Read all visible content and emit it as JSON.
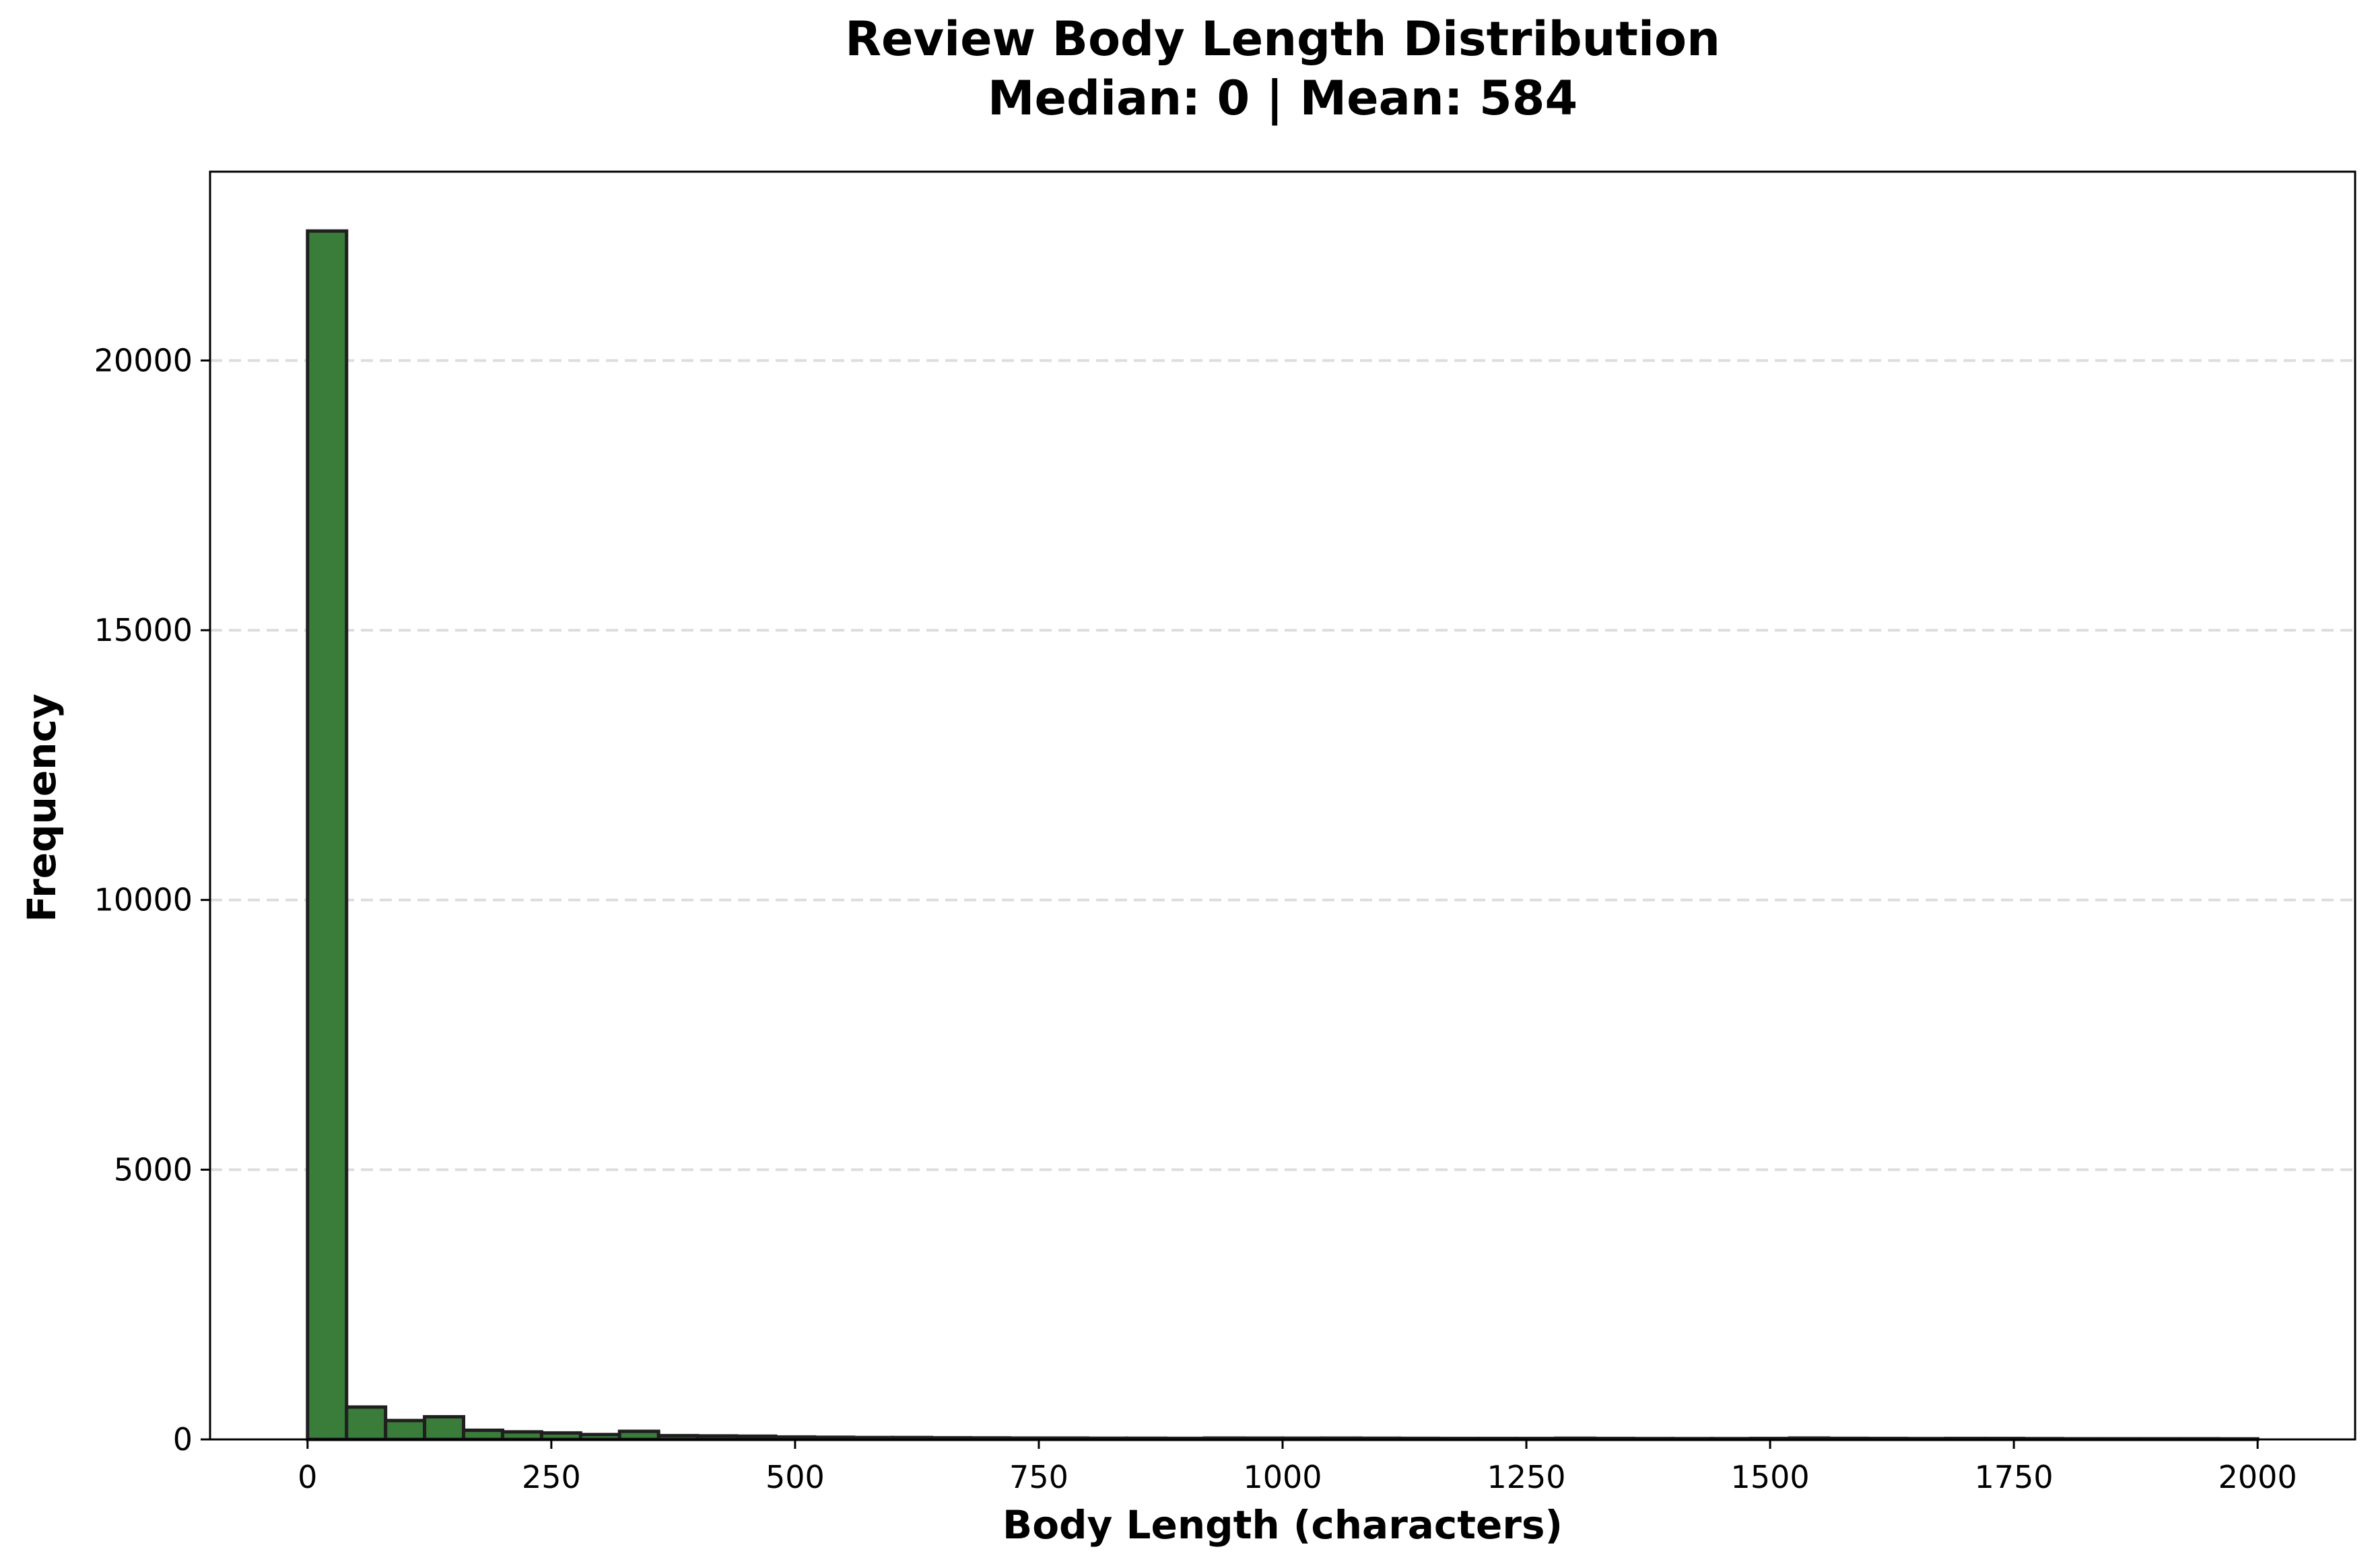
{
  "chart_data": {
    "type": "bar",
    "title": "Review Body Length Distribution",
    "subtitle": "Median: 0 | Mean: 584",
    "xlabel": "Body Length (characters)",
    "ylabel": "Frequency",
    "xlim": [
      -100,
      2100
    ],
    "ylim": [
      0,
      23500
    ],
    "x_ticks": [
      0,
      250,
      500,
      750,
      1000,
      1250,
      1500,
      1750,
      2000
    ],
    "x_tick_labels": [
      "0",
      "250",
      "500",
      "750",
      "1000",
      "1250",
      "1500",
      "1750",
      "2000"
    ],
    "y_ticks": [
      0,
      5000,
      10000,
      15000,
      20000
    ],
    "y_tick_labels": [
      "0",
      "5000",
      "10000",
      "15000",
      "20000"
    ],
    "grid": {
      "axis": "y",
      "style": "dashed"
    },
    "bar_color": "#3a7d3a",
    "edge_color": "#1f1f1f",
    "grid_color": "#dddddd",
    "bin_width": 40,
    "bin_start": 0,
    "values": [
      22400,
      600,
      350,
      420,
      170,
      140,
      120,
      90,
      150,
      70,
      65,
      60,
      45,
      40,
      35,
      35,
      30,
      28,
      25,
      25,
      22,
      22,
      20,
      25,
      24,
      23,
      24,
      22,
      20,
      18,
      18,
      18,
      22,
      18,
      16,
      15,
      15,
      18,
      25,
      20,
      18,
      16,
      18,
      18,
      15,
      12,
      12,
      12,
      12,
      10
    ]
  }
}
